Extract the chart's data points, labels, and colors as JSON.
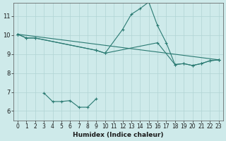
{
  "xlabel": "Humidex (Indice chaleur)",
  "xlim": [
    -0.5,
    23.5
  ],
  "ylim": [
    5.5,
    11.7
  ],
  "yticks": [
    6,
    7,
    8,
    9,
    10,
    11
  ],
  "xticks": [
    0,
    1,
    2,
    3,
    4,
    5,
    6,
    7,
    8,
    9,
    10,
    11,
    12,
    13,
    14,
    15,
    16,
    17,
    18,
    19,
    20,
    21,
    22,
    23
  ],
  "background_color": "#ceeaea",
  "grid_color": "#b0d4d4",
  "line_color": "#2a7a72",
  "line1_x": [
    0,
    1,
    2,
    9,
    10,
    12,
    13,
    14,
    15,
    16,
    17,
    18,
    19,
    20,
    21,
    22,
    23
  ],
  "line1_y": [
    10.05,
    9.85,
    9.85,
    9.2,
    9.05,
    10.3,
    11.1,
    11.4,
    11.75,
    10.5,
    9.6,
    8.45,
    8.5,
    8.4,
    8.5,
    8.65,
    8.7
  ],
  "line2_x": [
    0,
    23
  ],
  "line2_y": [
    10.05,
    8.7
  ],
  "line3_x": [
    0,
    1,
    2,
    9,
    10,
    16,
    18,
    19,
    20,
    21,
    22,
    23
  ],
  "line3_y": [
    10.05,
    9.85,
    9.85,
    9.2,
    9.05,
    9.6,
    8.45,
    8.5,
    8.4,
    8.5,
    8.65,
    8.7
  ],
  "line4_x": [
    3,
    4,
    5,
    6,
    7,
    8,
    9
  ],
  "line4_y": [
    6.95,
    6.5,
    6.5,
    6.55,
    6.2,
    6.2,
    6.65
  ]
}
